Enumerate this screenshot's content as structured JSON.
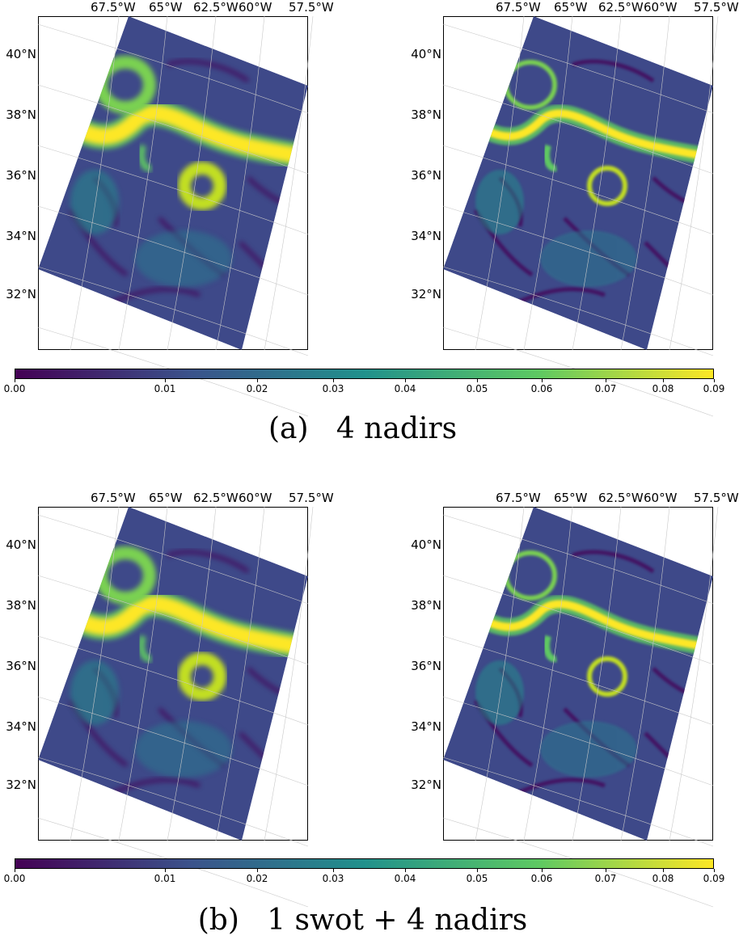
{
  "figure": {
    "rows": [
      {
        "caption": "(a)   4 nadirs",
        "panels": [
          {
            "lon_labels": [
              "67.5°W",
              "65°W",
              "62.5°W",
              "60°W",
              "57.5°W"
            ],
            "lat_labels": [
              "40°N",
              "38°N",
              "36°N",
              "34°N",
              "32°N"
            ]
          },
          {
            "lon_labels": [
              "67.5°W",
              "65°W",
              "62.5°W",
              "60°W",
              "57.5°W"
            ],
            "lat_labels": [
              "40°N",
              "38°N",
              "36°N",
              "34°N",
              "32°N"
            ]
          }
        ],
        "colorbar": {
          "ticks": [
            "0.00",
            "0.01",
            "0.02",
            "0.03",
            "0.04",
            "0.05",
            "0.06",
            "0.07",
            "0.08",
            "0.09"
          ]
        }
      },
      {
        "caption": "(b)   1 swot + 4 nadirs",
        "panels": [
          {
            "lon_labels": [
              "67.5°W",
              "65°W",
              "62.5°W",
              "60°W",
              "57.5°W"
            ],
            "lat_labels": [
              "40°N",
              "38°N",
              "36°N",
              "34°N",
              "32°N"
            ]
          },
          {
            "lon_labels": [
              "67.5°W",
              "65°W",
              "62.5°W",
              "60°W",
              "57.5°W"
            ],
            "lat_labels": [
              "40°N",
              "38°N",
              "36°N",
              "34°N",
              "32°N"
            ]
          }
        ],
        "colorbar": {
          "ticks": [
            "0.00",
            "0.01",
            "0.02",
            "0.03",
            "0.04",
            "0.05",
            "0.06",
            "0.07",
            "0.08",
            "0.09"
          ]
        }
      }
    ],
    "colormap": {
      "name": "viridis",
      "vmin": 0.0,
      "vmax": 0.09,
      "colors": [
        "#440154",
        "#3b528b",
        "#21918c",
        "#5ec962",
        "#fde725"
      ]
    },
    "background_color": "#3e4989"
  }
}
